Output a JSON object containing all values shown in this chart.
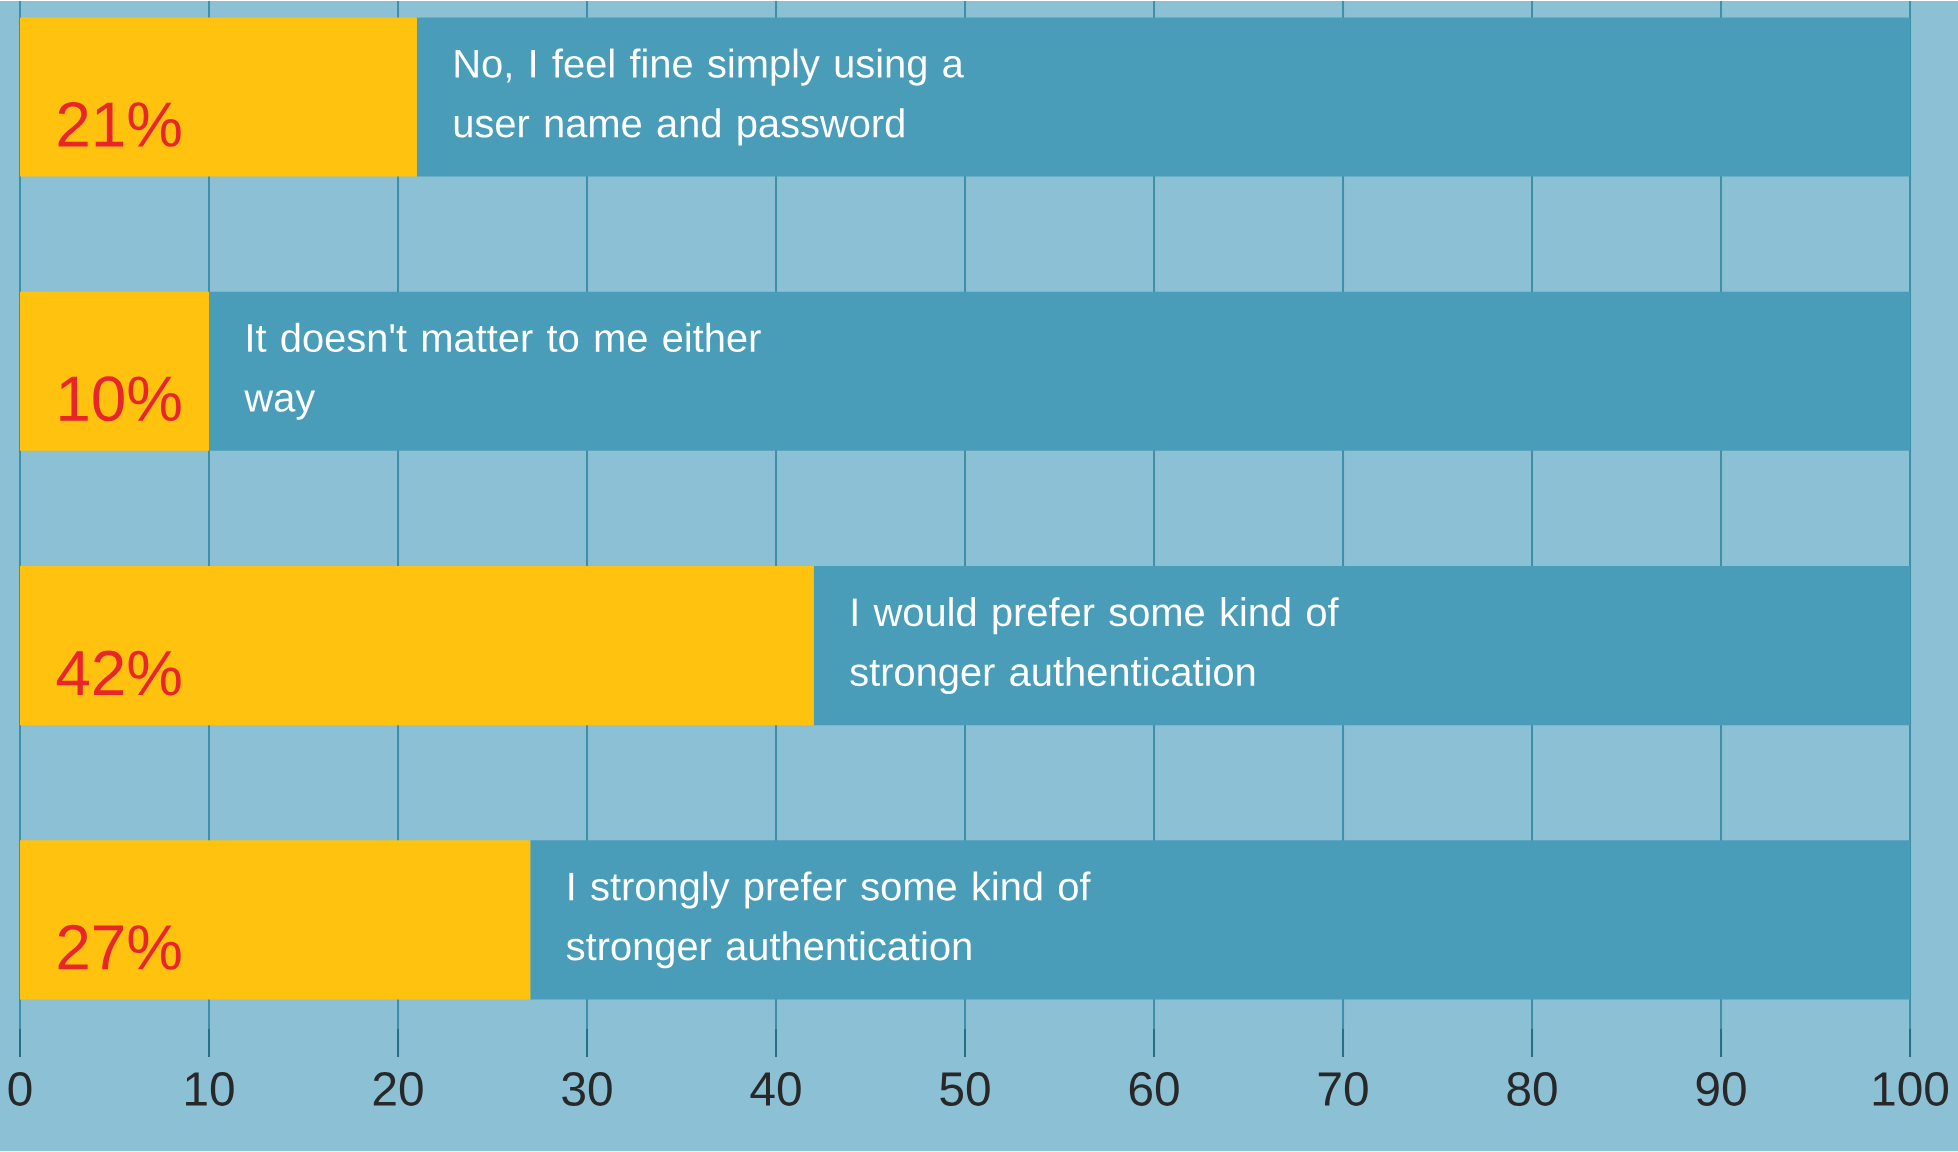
{
  "chart_data": {
    "type": "bar",
    "orientation": "horizontal",
    "stacked": true,
    "categories": [
      "No, I feel fine simply using a user name and password",
      "It doesn't matter to me either way",
      "I would prefer some kind of stronger authentication",
      "I strongly prefer some kind of stronger authentication"
    ],
    "series": [
      {
        "color": "#ffc20e",
        "values": [
          21,
          10,
          42,
          27
        ],
        "value_labels": [
          "21%",
          "10%",
          "42%",
          "27%"
        ]
      },
      {
        "color": "#4a9db8",
        "values": [
          79,
          90,
          58,
          73
        ]
      }
    ],
    "xlim": [
      0,
      100
    ],
    "xticks": [
      0,
      10,
      20,
      30,
      40,
      50,
      60,
      70,
      80,
      90,
      100
    ],
    "grid": "x"
  }
}
